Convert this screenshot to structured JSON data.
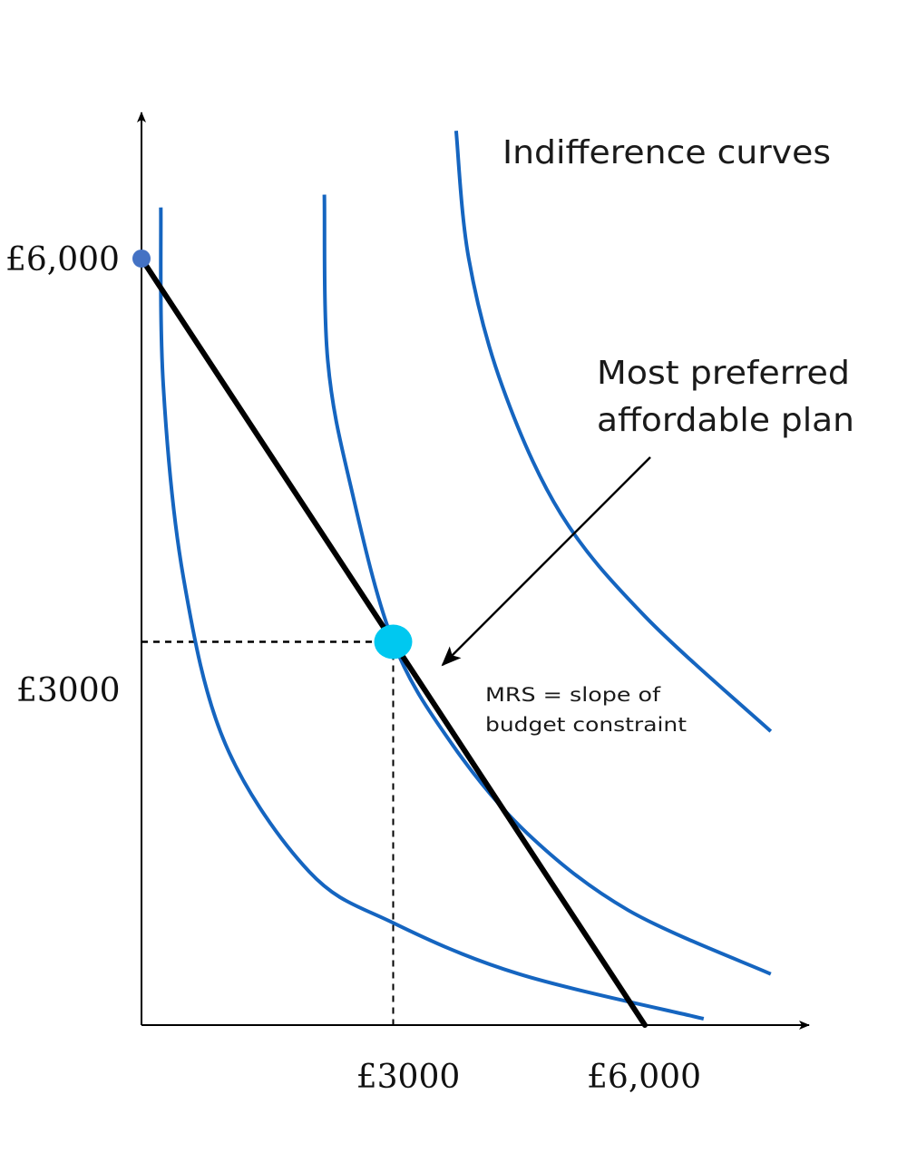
{
  "chart_data": {
    "type": "line",
    "title": "",
    "xlabel": "",
    "ylabel": "",
    "xlim": [
      0,
      7500
    ],
    "ylim": [
      0,
      7500
    ],
    "x_ticks": [
      {
        "value": 3000,
        "label": "£3000"
      },
      {
        "value": 6000,
        "label": "£6,000"
      }
    ],
    "y_ticks": [
      {
        "value": 3000,
        "label": "£3000"
      },
      {
        "value": 6000,
        "label": "£6,000"
      }
    ],
    "budget_constraint": {
      "points": [
        [
          0,
          6000
        ],
        [
          6000,
          0
        ]
      ]
    },
    "indifference_curves": {
      "label": "Indifference curves",
      "curves": [
        {
          "points": [
            [
              230,
              6400
            ],
            [
              260,
              5000
            ],
            [
              500,
              3500
            ],
            [
              1000,
              2200
            ],
            [
              2000,
              1200
            ],
            [
              3000,
              800
            ],
            [
              4500,
              400
            ],
            [
              6700,
              50
            ]
          ]
        },
        {
          "points": [
            [
              2180,
              6500
            ],
            [
              2220,
              5200
            ],
            [
              2500,
              4200
            ],
            [
              3000,
              3000
            ],
            [
              3700,
              2200
            ],
            [
              4600,
              1500
            ],
            [
              5800,
              900
            ],
            [
              7500,
              400
            ]
          ]
        },
        {
          "points": [
            [
              3750,
              7000
            ],
            [
              3900,
              6000
            ],
            [
              4300,
              5000
            ],
            [
              5000,
              4000
            ],
            [
              6000,
              3200
            ],
            [
              7500,
              2300
            ]
          ]
        }
      ]
    },
    "optimum_point": {
      "x": 3000,
      "y": 3000,
      "label": "Most preferred affordable plan",
      "note": "MRS = slope of budget constraint"
    },
    "colors": {
      "budget_line": "#000000",
      "curves": "#1565c0",
      "optimum": "#00c8f0",
      "intercept_dot": "#4472c4",
      "axes": "#000000"
    }
  }
}
